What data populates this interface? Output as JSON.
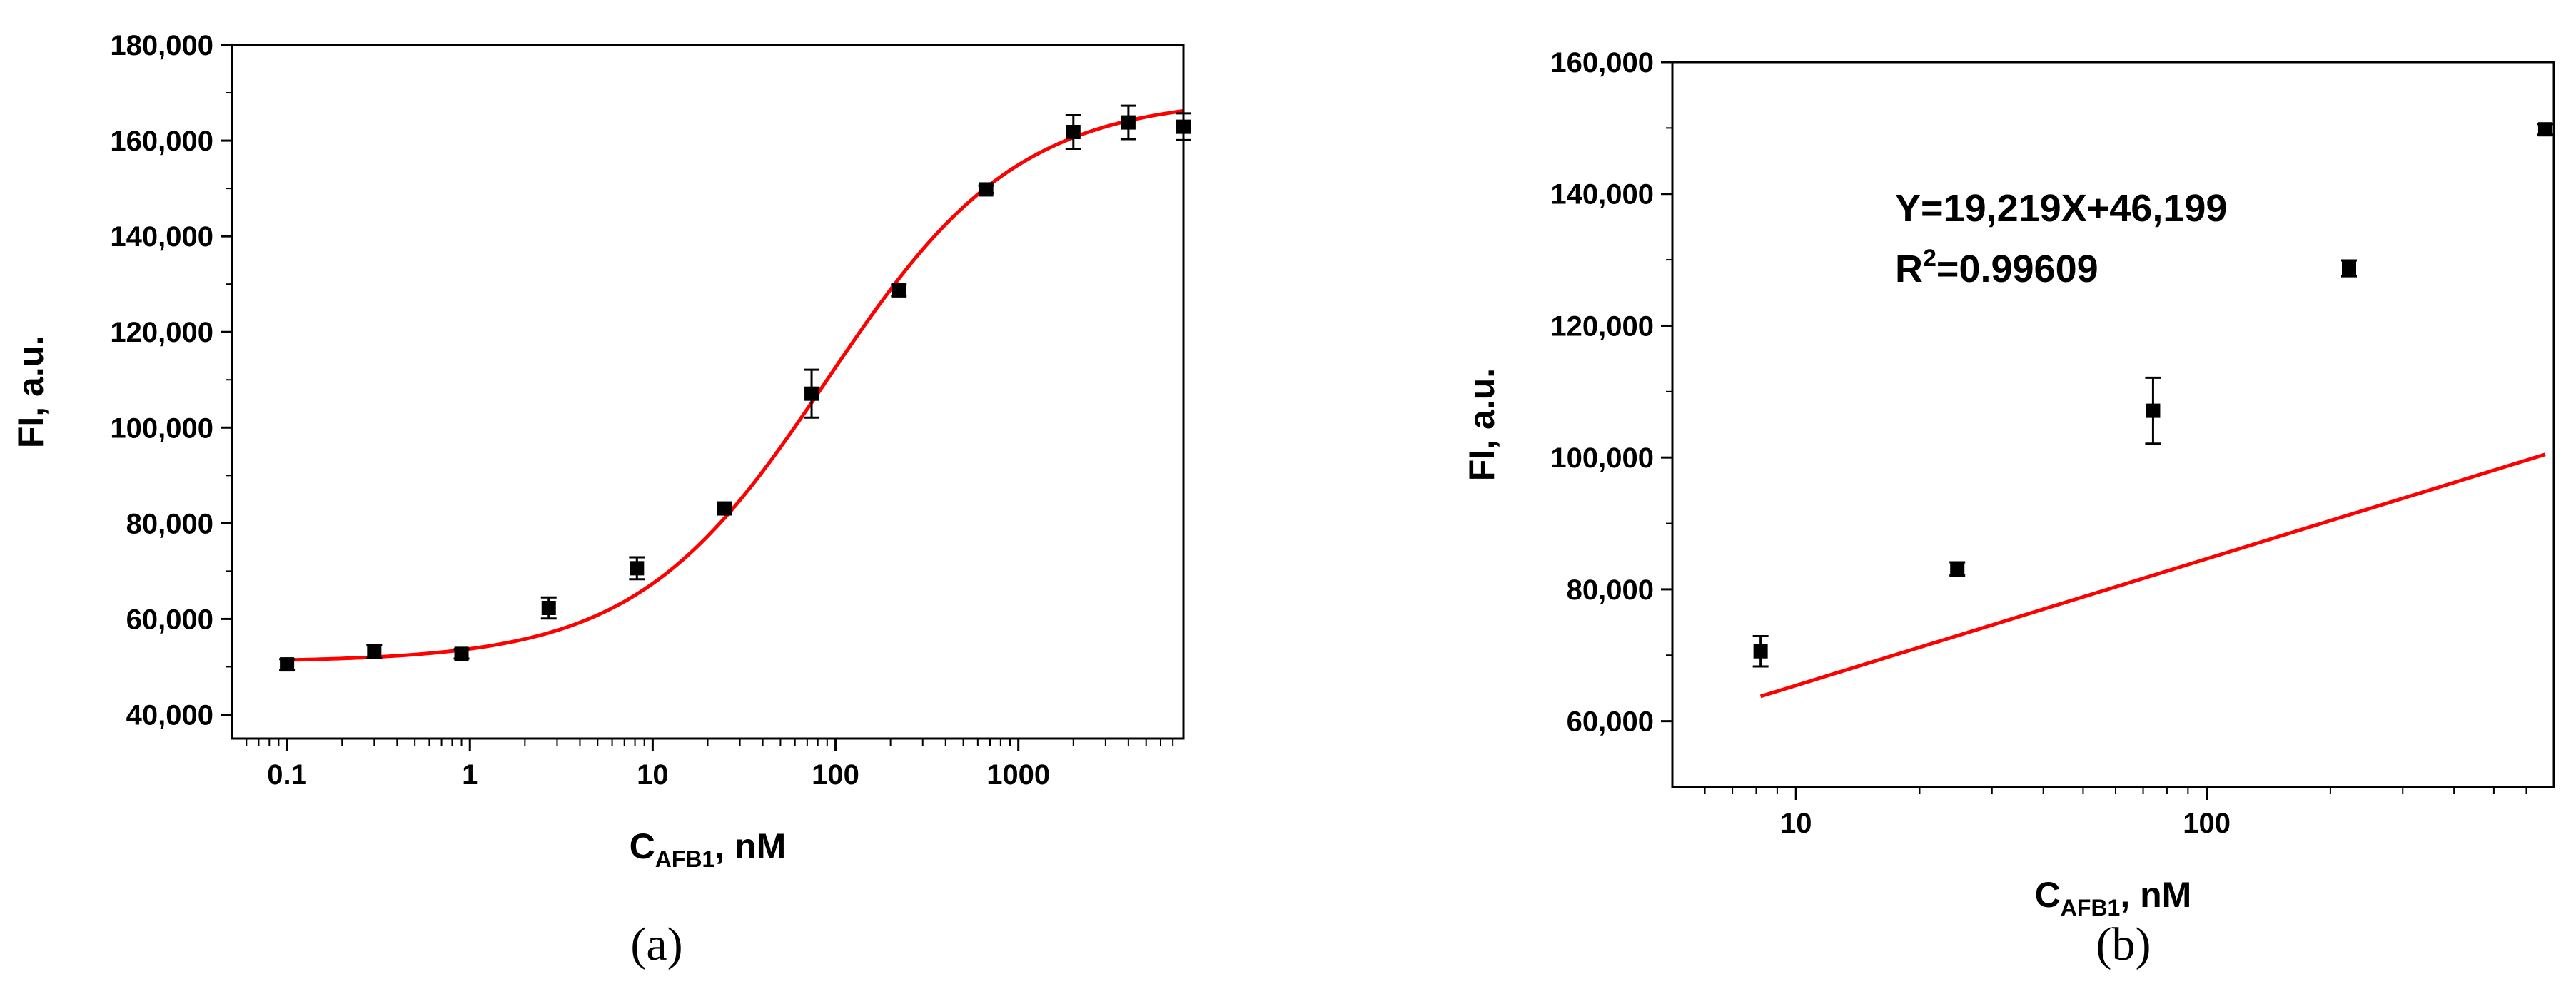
{
  "chart_data": [
    {
      "type": "scatter",
      "panel_label": "(a)",
      "xlabel": {
        "main": "C",
        "sub": "AFB1",
        "rest": ", nM"
      },
      "ylabel": "FI, a.u.",
      "x_scale": "log",
      "xlim": [
        0.05,
        8000
      ],
      "ylim": [
        35000,
        180000
      ],
      "x_ticks": [
        0.1,
        1,
        10,
        100,
        1000
      ],
      "x_tick_labels": [
        "0.1",
        "1",
        "10",
        "100",
        "1000"
      ],
      "y_ticks": [
        40000,
        60000,
        80000,
        100000,
        120000,
        140000,
        160000,
        180000
      ],
      "y_tick_labels": [
        "40,000",
        "60,000",
        "80,000",
        "100,000",
        "120,000",
        "140,000",
        "160,000",
        "180,000"
      ],
      "grid": false,
      "series": [
        {
          "kind": "points",
          "color": "#000000",
          "x": [
            0.1,
            0.3,
            0.9,
            2.7,
            8.2,
            24.7,
            74,
            222,
            667,
            2000,
            4000,
            8000
          ],
          "y": [
            50500,
            53200,
            52700,
            62300,
            70600,
            83100,
            107100,
            128700,
            149800,
            161800,
            163800,
            162900
          ],
          "yerr": [
            1100,
            1400,
            1000,
            2200,
            2300,
            1000,
            5000,
            1200,
            800,
            3500,
            3500,
            2800
          ]
        },
        {
          "kind": "fit",
          "color": "#ff0000",
          "model": "logistic",
          "params": {
            "bottom": 51000,
            "top": 169000,
            "ec50": 90,
            "slope": 0.83
          }
        }
      ]
    },
    {
      "type": "scatter",
      "panel_label": "(b)",
      "xlabel": {
        "main": "C",
        "sub": "AFB1",
        "rest": ", nM"
      },
      "ylabel": "FI, a.u.",
      "x_scale": "log",
      "xlim": [
        5,
        700
      ],
      "ylim": [
        50000,
        160000
      ],
      "x_ticks": [
        10,
        100
      ],
      "x_tick_labels": [
        "10",
        "100"
      ],
      "y_ticks": [
        60000,
        80000,
        100000,
        120000,
        140000,
        160000
      ],
      "y_tick_labels": [
        "60,000",
        "80,000",
        "100,000",
        "120,000",
        "140,000",
        "160,000"
      ],
      "grid": false,
      "annotations": {
        "equation": "Y=19,219X+46,199",
        "r2_prefix": "R",
        "r2_sup": "2",
        "r2_value": "=0.99609"
      },
      "series": [
        {
          "kind": "points",
          "color": "#000000",
          "x": [
            8.2,
            24.7,
            74,
            222,
            667
          ],
          "y": [
            70600,
            83100,
            107100,
            128700,
            149800
          ],
          "yerr": [
            2300,
            1000,
            5000,
            1200,
            800
          ]
        },
        {
          "kind": "fit",
          "color": "#ff0000",
          "model": "linear_log",
          "params": {
            "slope": 19219,
            "intercept": 46199
          },
          "x_range": [
            8.2,
            667
          ]
        }
      ]
    }
  ]
}
